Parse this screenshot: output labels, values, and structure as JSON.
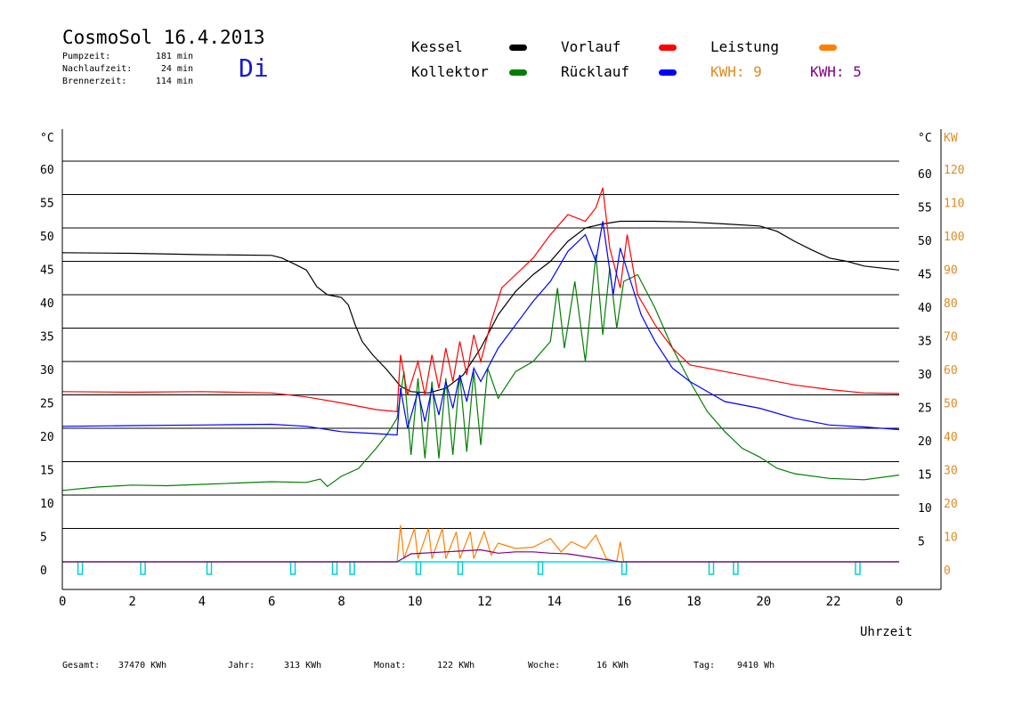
{
  "header": {
    "title": "CosmoSol 16.4.2013",
    "day": "Di",
    "stats": [
      {
        "label": "Pumpzeit:",
        "value": "181 min"
      },
      {
        "label": "Nachlaufzeit:",
        "value": "24 min"
      },
      {
        "label": "Brennerzeit:",
        "value": "114 min"
      }
    ]
  },
  "legend": {
    "kessel": {
      "label": "Kessel",
      "color": "#000000"
    },
    "kollektor": {
      "label": "Kollektor",
      "color": "#008000"
    },
    "vorlauf": {
      "label": "Vorlauf",
      "color": "#ff0000"
    },
    "ruecklauf": {
      "label": "Rücklauf",
      "color": "#0000ff"
    },
    "leistung": {
      "label": "Leistung",
      "color": "#ff8000"
    },
    "kwh1": {
      "label": "KWH: 9",
      "color": "#ff8000"
    },
    "kwh2": {
      "label": "KWH: 5",
      "color": "#800080"
    }
  },
  "footer": {
    "gesamt_label": "Gesamt:",
    "gesamt_value": "37470 KWh",
    "jahr_label": "Jahr:",
    "jahr_value": "313 KWh",
    "monat_label": "Monat:",
    "monat_value": "122 KWh",
    "woche_label": "Woche:",
    "woche_value": "16 KWh",
    "tag_label": "Tag:",
    "tag_value": "9410 Wh"
  },
  "chart_data": {
    "type": "line",
    "xlabel": "Uhrzeit",
    "ylabel_left": "°C",
    "ylabel_right": "°C",
    "ylabel_right2": "KW",
    "xlim": [
      0,
      24
    ],
    "ylim": [
      0,
      60
    ],
    "ylim_right2": [
      0,
      120
    ],
    "x_ticks": [
      "0",
      "2",
      "4",
      "6",
      "8",
      "10",
      "12",
      "14",
      "16",
      "18",
      "20",
      "22",
      "0"
    ],
    "y_ticks": [
      0,
      5,
      10,
      15,
      20,
      25,
      30,
      35,
      40,
      45,
      50,
      55,
      60
    ],
    "y_ticks_right2": [
      0,
      10,
      20,
      30,
      40,
      50,
      60,
      70,
      80,
      90,
      100,
      110,
      120
    ],
    "grid": "horizontal",
    "series": [
      {
        "name": "Kessel",
        "color": "#000000",
        "points": [
          [
            0,
            46.3
          ],
          [
            2,
            46.2
          ],
          [
            4,
            46
          ],
          [
            6,
            45.9
          ],
          [
            6.3,
            45.5
          ],
          [
            6.7,
            44.5
          ],
          [
            7,
            43.7
          ],
          [
            7.3,
            41.2
          ],
          [
            7.6,
            40
          ],
          [
            8,
            39.6
          ],
          [
            8.2,
            38.5
          ],
          [
            8.4,
            35.5
          ],
          [
            8.6,
            33
          ],
          [
            8.9,
            31
          ],
          [
            9.3,
            28.8
          ],
          [
            9.7,
            26.3
          ],
          [
            10,
            25.5
          ],
          [
            10.5,
            25.3
          ],
          [
            11,
            26
          ],
          [
            11.5,
            28
          ],
          [
            12,
            32
          ],
          [
            12.5,
            37
          ],
          [
            13,
            40.5
          ],
          [
            13.5,
            43
          ],
          [
            14,
            45
          ],
          [
            14.5,
            48
          ],
          [
            15,
            50
          ],
          [
            15.5,
            50.6
          ],
          [
            16,
            51
          ],
          [
            17,
            51
          ],
          [
            18,
            50.9
          ],
          [
            19,
            50.6
          ],
          [
            20,
            50.3
          ],
          [
            20.5,
            49.5
          ],
          [
            21,
            48
          ],
          [
            21.5,
            46.7
          ],
          [
            22,
            45.5
          ],
          [
            22.5,
            45
          ],
          [
            23,
            44.3
          ],
          [
            24,
            43.7
          ]
        ]
      },
      {
        "name": "Kollektor",
        "color": "#008000",
        "points": [
          [
            0,
            10.7
          ],
          [
            1,
            11.2
          ],
          [
            2,
            11.5
          ],
          [
            3,
            11.4
          ],
          [
            4,
            11.6
          ],
          [
            5,
            11.8
          ],
          [
            6,
            12
          ],
          [
            7,
            11.9
          ],
          [
            7.4,
            12.4
          ],
          [
            7.6,
            11.3
          ],
          [
            8,
            12.8
          ],
          [
            8.5,
            14
          ],
          [
            9,
            17
          ],
          [
            9.3,
            19
          ],
          [
            9.6,
            21.5
          ],
          [
            9.8,
            28.5
          ],
          [
            10,
            16
          ],
          [
            10.2,
            27.5
          ],
          [
            10.4,
            15.5
          ],
          [
            10.6,
            27
          ],
          [
            10.8,
            15.5
          ],
          [
            11,
            27.5
          ],
          [
            11.2,
            16
          ],
          [
            11.4,
            28
          ],
          [
            11.6,
            16.5
          ],
          [
            11.8,
            28.5
          ],
          [
            12,
            17.5
          ],
          [
            12.2,
            29
          ],
          [
            12.5,
            24.5
          ],
          [
            13,
            28.5
          ],
          [
            13.5,
            30
          ],
          [
            14,
            33
          ],
          [
            14.2,
            41
          ],
          [
            14.4,
            32
          ],
          [
            14.7,
            42
          ],
          [
            15,
            30
          ],
          [
            15.3,
            46
          ],
          [
            15.5,
            34
          ],
          [
            15.7,
            44
          ],
          [
            15.9,
            35
          ],
          [
            16.1,
            42
          ],
          [
            16.5,
            43
          ],
          [
            17,
            38
          ],
          [
            17.5,
            32
          ],
          [
            18,
            27
          ],
          [
            18.5,
            22.5
          ],
          [
            19,
            19.5
          ],
          [
            19.5,
            17
          ],
          [
            20,
            15.7
          ],
          [
            20.5,
            14
          ],
          [
            21,
            13.2
          ],
          [
            22,
            12.5
          ],
          [
            23,
            12.3
          ],
          [
            24,
            13
          ]
        ]
      },
      {
        "name": "Vorlauf",
        "color": "#ff0000",
        "points": [
          [
            0,
            25.5
          ],
          [
            2,
            25.4
          ],
          [
            4,
            25.5
          ],
          [
            6,
            25.3
          ],
          [
            7,
            24.7
          ],
          [
            8,
            23.8
          ],
          [
            9,
            22.8
          ],
          [
            9.6,
            22.5
          ],
          [
            9.7,
            31
          ],
          [
            9.9,
            25
          ],
          [
            10.2,
            30
          ],
          [
            10.4,
            25
          ],
          [
            10.6,
            31
          ],
          [
            10.8,
            26
          ],
          [
            11,
            32
          ],
          [
            11.2,
            27
          ],
          [
            11.4,
            33
          ],
          [
            11.6,
            28
          ],
          [
            11.8,
            34
          ],
          [
            12,
            30
          ],
          [
            12.3,
            36
          ],
          [
            12.6,
            41
          ],
          [
            13,
            43
          ],
          [
            13.5,
            45.5
          ],
          [
            14,
            49
          ],
          [
            14.5,
            52
          ],
          [
            15,
            51
          ],
          [
            15.3,
            53
          ],
          [
            15.5,
            56
          ],
          [
            15.7,
            47
          ],
          [
            16,
            41
          ],
          [
            16.2,
            49
          ],
          [
            16.5,
            40
          ],
          [
            17,
            35.5
          ],
          [
            17.5,
            32
          ],
          [
            18,
            29.5
          ],
          [
            19,
            28.5
          ],
          [
            20,
            27.5
          ],
          [
            21,
            26.5
          ],
          [
            22,
            25.8
          ],
          [
            23,
            25.3
          ],
          [
            24,
            25.2
          ]
        ]
      },
      {
        "name": "Rücklauf",
        "color": "#0000ff",
        "points": [
          [
            0,
            20.3
          ],
          [
            2,
            20.4
          ],
          [
            4,
            20.5
          ],
          [
            6,
            20.6
          ],
          [
            7,
            20.3
          ],
          [
            8,
            19.5
          ],
          [
            9,
            19.2
          ],
          [
            9.6,
            19
          ],
          [
            9.7,
            26
          ],
          [
            9.9,
            20
          ],
          [
            10.2,
            25.5
          ],
          [
            10.4,
            21
          ],
          [
            10.6,
            26
          ],
          [
            10.8,
            22
          ],
          [
            11,
            27
          ],
          [
            11.2,
            23
          ],
          [
            11.4,
            28
          ],
          [
            11.6,
            24
          ],
          [
            11.8,
            29
          ],
          [
            12,
            27
          ],
          [
            12.5,
            32
          ],
          [
            13,
            35.5
          ],
          [
            13.5,
            39
          ],
          [
            14,
            42
          ],
          [
            14.5,
            46.5
          ],
          [
            15,
            49
          ],
          [
            15.3,
            45
          ],
          [
            15.5,
            51
          ],
          [
            15.8,
            40
          ],
          [
            16,
            47
          ],
          [
            16.3,
            42
          ],
          [
            16.6,
            37
          ],
          [
            17,
            33
          ],
          [
            17.5,
            29
          ],
          [
            18,
            27
          ],
          [
            19,
            24
          ],
          [
            20,
            23
          ],
          [
            21,
            21.5
          ],
          [
            22,
            20.5
          ],
          [
            23,
            20.2
          ],
          [
            24,
            19.8
          ]
        ]
      },
      {
        "name": "Leistung",
        "color": "#ff8000",
        "points": [
          [
            0,
            0
          ],
          [
            9.6,
            0
          ],
          [
            9.7,
            5.5
          ],
          [
            9.8,
            0.5
          ],
          [
            10.1,
            5
          ],
          [
            10.2,
            0.5
          ],
          [
            10.5,
            5
          ],
          [
            10.6,
            0.5
          ],
          [
            10.9,
            5
          ],
          [
            11,
            0.5
          ],
          [
            11.3,
            4.5
          ],
          [
            11.4,
            0.5
          ],
          [
            11.7,
            4.5
          ],
          [
            11.8,
            0.5
          ],
          [
            12.1,
            4.5
          ],
          [
            12.3,
            1
          ],
          [
            12.5,
            2.8
          ],
          [
            13,
            2
          ],
          [
            13.5,
            2.2
          ],
          [
            14,
            3.5
          ],
          [
            14.3,
            1.5
          ],
          [
            14.6,
            3
          ],
          [
            15,
            2
          ],
          [
            15.3,
            4
          ],
          [
            15.6,
            0.5
          ],
          [
            15.9,
            0
          ],
          [
            16,
            3
          ],
          [
            16.1,
            0
          ],
          [
            24,
            0
          ]
        ]
      },
      {
        "name": "KWH",
        "color": "#800080",
        "points": [
          [
            0,
            0
          ],
          [
            9.6,
            0
          ],
          [
            10,
            1.2
          ],
          [
            11,
            1.5
          ],
          [
            12,
            1.8
          ],
          [
            12.5,
            1.3
          ],
          [
            13,
            1.5
          ],
          [
            13.5,
            1.5
          ],
          [
            14,
            1.3
          ],
          [
            14.5,
            1.2
          ],
          [
            15,
            0.8
          ],
          [
            15.5,
            0.4
          ],
          [
            16,
            0
          ],
          [
            24,
            0
          ]
        ]
      }
    ],
    "pump_markers": [
      0.5,
      2.3,
      4.2,
      6.6,
      7.8,
      8.3,
      10.2,
      11.4,
      13.7,
      16.1,
      18.6,
      19.3,
      22.8
    ]
  }
}
